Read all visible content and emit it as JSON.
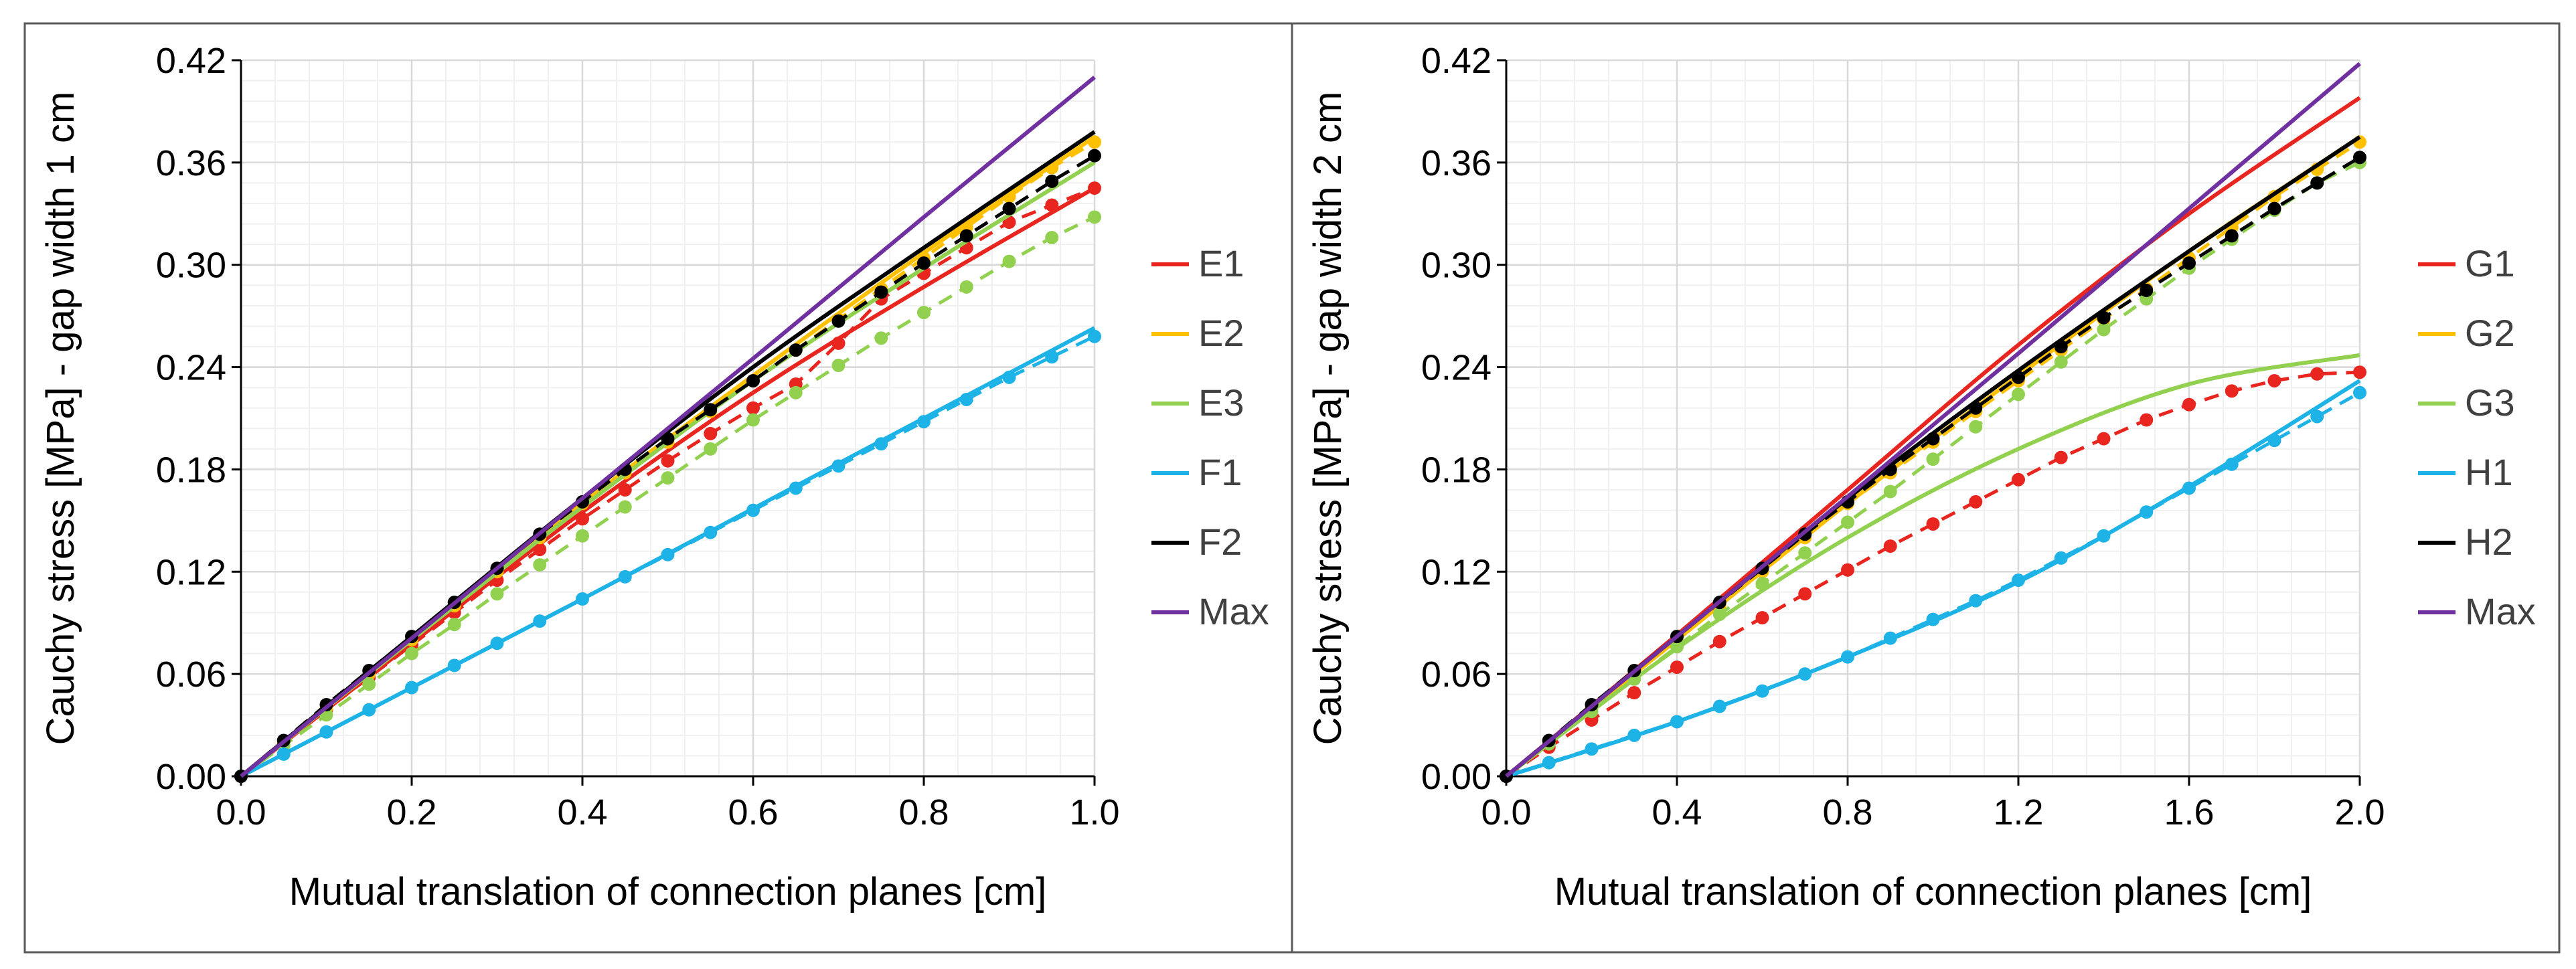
{
  "chart_data": [
    {
      "type": "line",
      "title": "",
      "xlabel": "Mutual translation of connection planes [cm]",
      "ylabel": "Cauchy stress [MPa] - gap width 1 cm",
      "xlim": [
        0,
        1.0
      ],
      "ylim": [
        0,
        0.42
      ],
      "xticks": [
        "0.0",
        "0.2",
        "0.4",
        "0.6",
        "0.8",
        "1.0"
      ],
      "yticks": [
        "0.00",
        "0.06",
        "0.12",
        "0.18",
        "0.24",
        "0.30",
        "0.36",
        "0.42"
      ],
      "grid": true,
      "legend_position": "right",
      "series": [
        {
          "name": "E1",
          "color": "#e8251f",
          "fit": {
            "x": [
              0,
              0.2,
              0.4,
              0.6,
              0.8,
              1.0
            ],
            "y": [
              0,
              0.078,
              0.155,
              0.225,
              0.287,
              0.345
            ]
          },
          "points": {
            "x": [
              0,
              0.05,
              0.1,
              0.15,
              0.2,
              0.25,
              0.3,
              0.35,
              0.4,
              0.45,
              0.5,
              0.55,
              0.6,
              0.65,
              0.7,
              0.75,
              0.8,
              0.85,
              0.9,
              0.95,
              1.0
            ],
            "y": [
              0,
              0.02,
              0.039,
              0.058,
              0.077,
              0.096,
              0.115,
              0.133,
              0.151,
              0.168,
              0.185,
              0.201,
              0.216,
              0.23,
              0.254,
              0.28,
              0.295,
              0.31,
              0.325,
              0.335,
              0.345
            ]
          }
        },
        {
          "name": "E2",
          "color": "#ffc000",
          "fit": {
            "x": [
              0,
              0.2,
              0.4,
              0.6,
              0.8,
              1.0
            ],
            "y": [
              0,
              0.08,
              0.16,
              0.235,
              0.307,
              0.375
            ]
          },
          "points": {
            "x": [
              0,
              0.05,
              0.1,
              0.15,
              0.2,
              0.25,
              0.3,
              0.35,
              0.4,
              0.45,
              0.5,
              0.55,
              0.6,
              0.65,
              0.7,
              0.75,
              0.8,
              0.85,
              0.9,
              0.95,
              1.0
            ],
            "y": [
              0,
              0.02,
              0.04,
              0.06,
              0.08,
              0.1,
              0.12,
              0.14,
              0.16,
              0.178,
              0.196,
              0.214,
              0.232,
              0.25,
              0.268,
              0.286,
              0.304,
              0.322,
              0.34,
              0.357,
              0.372
            ]
          }
        },
        {
          "name": "E3",
          "color": "#92d050",
          "fit": {
            "x": [
              0,
              0.2,
              0.4,
              0.6,
              0.8,
              1.0
            ],
            "y": [
              0,
              0.08,
              0.158,
              0.232,
              0.298,
              0.36
            ]
          },
          "points": {
            "x": [
              0,
              0.05,
              0.1,
              0.15,
              0.2,
              0.25,
              0.3,
              0.35,
              0.4,
              0.45,
              0.5,
              0.55,
              0.6,
              0.65,
              0.7,
              0.75,
              0.8,
              0.85,
              0.9,
              0.95,
              1.0
            ],
            "y": [
              0,
              0.018,
              0.036,
              0.054,
              0.072,
              0.089,
              0.107,
              0.124,
              0.141,
              0.158,
              0.175,
              0.192,
              0.209,
              0.225,
              0.241,
              0.257,
              0.272,
              0.287,
              0.302,
              0.316,
              0.328
            ]
          }
        },
        {
          "name": "F1",
          "color": "#1eb3e6",
          "fit": {
            "x": [
              0,
              0.2,
              0.4,
              0.6,
              0.8,
              1.0
            ],
            "y": [
              0,
              0.052,
              0.104,
              0.157,
              0.21,
              0.263
            ]
          },
          "points": {
            "x": [
              0,
              0.05,
              0.1,
              0.15,
              0.2,
              0.25,
              0.3,
              0.35,
              0.4,
              0.45,
              0.5,
              0.55,
              0.6,
              0.65,
              0.7,
              0.75,
              0.8,
              0.85,
              0.9,
              0.95,
              1.0
            ],
            "y": [
              0,
              0.013,
              0.026,
              0.039,
              0.052,
              0.065,
              0.078,
              0.091,
              0.104,
              0.117,
              0.13,
              0.143,
              0.156,
              0.169,
              0.182,
              0.195,
              0.208,
              0.221,
              0.234,
              0.246,
              0.258
            ]
          }
        },
        {
          "name": "F2",
          "color": "#000000",
          "fit": {
            "x": [
              0,
              0.2,
              0.4,
              0.6,
              0.8,
              1.0
            ],
            "y": [
              0,
              0.082,
              0.163,
              0.24,
              0.31,
              0.378
            ]
          },
          "points": {
            "x": [
              0,
              0.05,
              0.1,
              0.15,
              0.2,
              0.25,
              0.3,
              0.35,
              0.4,
              0.45,
              0.5,
              0.55,
              0.6,
              0.65,
              0.7,
              0.75,
              0.8,
              0.85,
              0.9,
              0.95,
              1.0
            ],
            "y": [
              0,
              0.021,
              0.042,
              0.062,
              0.082,
              0.102,
              0.122,
              0.142,
              0.161,
              0.18,
              0.198,
              0.215,
              0.232,
              0.25,
              0.267,
              0.284,
              0.301,
              0.317,
              0.333,
              0.349,
              0.364
            ]
          }
        },
        {
          "name": "Max",
          "color": "#7030a0",
          "fit": {
            "x": [
              0,
              0.2,
              0.4,
              0.6,
              0.8,
              1.0
            ],
            "y": [
              0,
              0.081,
              0.163,
              0.245,
              0.328,
              0.41
            ]
          },
          "points": null
        }
      ]
    },
    {
      "type": "line",
      "title": "",
      "xlabel": "Mutual translation of connection planes [cm]",
      "ylabel": "Cauchy stress [MPa] - gap width 2 cm",
      "xlim": [
        0,
        2.0
      ],
      "ylim": [
        0,
        0.42
      ],
      "xticks": [
        "0.0",
        "0.4",
        "0.8",
        "1.2",
        "1.6",
        "2.0"
      ],
      "yticks": [
        "0.00",
        "0.06",
        "0.12",
        "0.18",
        "0.24",
        "0.30",
        "0.36",
        "0.42"
      ],
      "grid": true,
      "legend_position": "right",
      "series": [
        {
          "name": "G1",
          "color": "#e8251f",
          "fit": {
            "x": [
              0,
              0.4,
              0.8,
              1.2,
              1.6,
              2.0
            ],
            "y": [
              0,
              0.083,
              0.168,
              0.253,
              0.33,
              0.398
            ]
          },
          "points": {
            "x": [
              0,
              0.1,
              0.2,
              0.3,
              0.4,
              0.5,
              0.6,
              0.7,
              0.8,
              0.9,
              1.0,
              1.1,
              1.2,
              1.3,
              1.4,
              1.5,
              1.6,
              1.7,
              1.8,
              1.9,
              2.0
            ],
            "y": [
              0,
              0.017,
              0.033,
              0.049,
              0.064,
              0.079,
              0.093,
              0.107,
              0.121,
              0.135,
              0.148,
              0.161,
              0.174,
              0.187,
              0.198,
              0.209,
              0.218,
              0.226,
              0.232,
              0.236,
              0.237
            ]
          }
        },
        {
          "name": "G2",
          "color": "#ffc000",
          "fit": {
            "x": [
              0,
              0.4,
              0.8,
              1.2,
              1.6,
              2.0
            ],
            "y": [
              0,
              0.08,
              0.16,
              0.235,
              0.308,
              0.375
            ]
          },
          "points": {
            "x": [
              0,
              0.1,
              0.2,
              0.3,
              0.4,
              0.5,
              0.6,
              0.7,
              0.8,
              0.9,
              1.0,
              1.1,
              1.2,
              1.3,
              1.4,
              1.5,
              1.6,
              1.7,
              1.8,
              1.9,
              2.0
            ],
            "y": [
              0,
              0.02,
              0.04,
              0.06,
              0.08,
              0.1,
              0.12,
              0.14,
              0.16,
              0.178,
              0.196,
              0.214,
              0.232,
              0.25,
              0.268,
              0.286,
              0.304,
              0.322,
              0.34,
              0.356,
              0.372
            ]
          }
        },
        {
          "name": "G3",
          "color": "#92d050",
          "fit": {
            "x": [
              0,
              0.4,
              0.8,
              1.2,
              1.6,
              2.0
            ],
            "y": [
              0,
              0.075,
              0.14,
              0.192,
              0.23,
              0.247
            ]
          },
          "points": {
            "x": [
              0,
              0.1,
              0.2,
              0.3,
              0.4,
              0.5,
              0.6,
              0.7,
              0.8,
              0.9,
              1.0,
              1.1,
              1.2,
              1.3,
              1.4,
              1.5,
              1.6,
              1.7,
              1.8,
              1.9,
              2.0
            ],
            "y": [
              0,
              0.019,
              0.038,
              0.057,
              0.076,
              0.095,
              0.113,
              0.131,
              0.149,
              0.167,
              0.186,
              0.205,
              0.224,
              0.243,
              0.262,
              0.28,
              0.298,
              0.315,
              0.332,
              0.348,
              0.36
            ]
          }
        },
        {
          "name": "H1",
          "color": "#1eb3e6",
          "fit": {
            "x": [
              0,
              0.4,
              0.8,
              1.2,
              1.6,
              2.0
            ],
            "y": [
              0,
              0.032,
              0.07,
              0.114,
              0.17,
              0.232
            ]
          },
          "points": {
            "x": [
              0,
              0.1,
              0.2,
              0.3,
              0.4,
              0.5,
              0.6,
              0.7,
              0.8,
              0.9,
              1.0,
              1.1,
              1.2,
              1.3,
              1.4,
              1.5,
              1.6,
              1.7,
              1.8,
              1.9,
              2.0
            ],
            "y": [
              0,
              0.008,
              0.016,
              0.024,
              0.032,
              0.041,
              0.05,
              0.06,
              0.07,
              0.081,
              0.092,
              0.103,
              0.115,
              0.128,
              0.141,
              0.155,
              0.169,
              0.183,
              0.197,
              0.211,
              0.225
            ]
          }
        },
        {
          "name": "H2",
          "color": "#000000",
          "fit": {
            "x": [
              0,
              0.4,
              0.8,
              1.2,
              1.6,
              2.0
            ],
            "y": [
              0,
              0.082,
              0.163,
              0.238,
              0.308,
              0.375
            ]
          },
          "points": {
            "x": [
              0,
              0.1,
              0.2,
              0.3,
              0.4,
              0.5,
              0.6,
              0.7,
              0.8,
              0.9,
              1.0,
              1.1,
              1.2,
              1.3,
              1.4,
              1.5,
              1.6,
              1.7,
              1.8,
              1.9,
              2.0
            ],
            "y": [
              0,
              0.021,
              0.042,
              0.062,
              0.082,
              0.102,
              0.122,
              0.142,
              0.161,
              0.18,
              0.198,
              0.216,
              0.234,
              0.252,
              0.269,
              0.285,
              0.301,
              0.317,
              0.333,
              0.348,
              0.363
            ]
          }
        },
        {
          "name": "Max",
          "color": "#7030a0",
          "fit": {
            "x": [
              0,
              0.4,
              0.8,
              1.2,
              1.6,
              2.0
            ],
            "y": [
              0,
              0.082,
              0.164,
              0.248,
              0.333,
              0.418
            ]
          },
          "points": null
        }
      ]
    }
  ]
}
